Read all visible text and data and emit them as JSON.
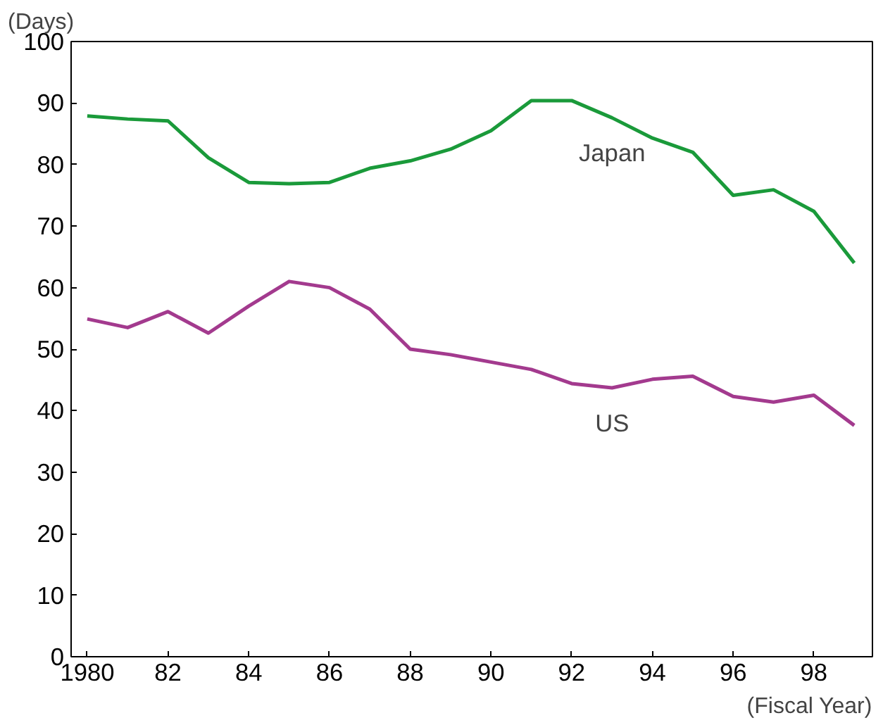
{
  "chart_data": {
    "type": "line",
    "xlabel": "(Fiscal Year)",
    "ylabel": "(Days)",
    "x": [
      1980,
      1981,
      1982,
      1983,
      1984,
      1985,
      1986,
      1987,
      1988,
      1989,
      1990,
      1991,
      1992,
      1993,
      1994,
      1995,
      1996,
      1997,
      1998,
      1999
    ],
    "series": [
      {
        "name": "Japan",
        "color": "#1a9a3a",
        "values": [
          87.9,
          87.4,
          87.1,
          81.1,
          77.1,
          76.9,
          77.1,
          79.4,
          80.6,
          82.5,
          85.5,
          90.4,
          90.4,
          87.6,
          84.3,
          82.0,
          75.0,
          75.9,
          72.4,
          64.0
        ]
      },
      {
        "name": "US",
        "color": "#a33a8e",
        "values": [
          54.9,
          53.5,
          56.1,
          52.6,
          57.0,
          61.0,
          60.0,
          56.5,
          50.0,
          49.1,
          47.9,
          46.7,
          44.4,
          43.7,
          45.1,
          45.6,
          42.3,
          41.4,
          42.5,
          37.6
        ]
      }
    ],
    "xlim": [
      1979.6,
      1999.45
    ],
    "xticks": [
      {
        "value": 1980,
        "label": "1980"
      },
      {
        "value": 1982,
        "label": "82"
      },
      {
        "value": 1984,
        "label": "84"
      },
      {
        "value": 1986,
        "label": "86"
      },
      {
        "value": 1988,
        "label": "88"
      },
      {
        "value": 1990,
        "label": "90"
      },
      {
        "value": 1992,
        "label": "92"
      },
      {
        "value": 1994,
        "label": "94"
      },
      {
        "value": 1996,
        "label": "96"
      },
      {
        "value": 1998,
        "label": "98"
      }
    ],
    "ylim": [
      0,
      100
    ],
    "yticks": [
      0,
      10,
      20,
      30,
      40,
      50,
      60,
      70,
      80,
      90,
      100
    ],
    "grid": false,
    "legend": false,
    "marker": "none",
    "line_style": "solid"
  }
}
